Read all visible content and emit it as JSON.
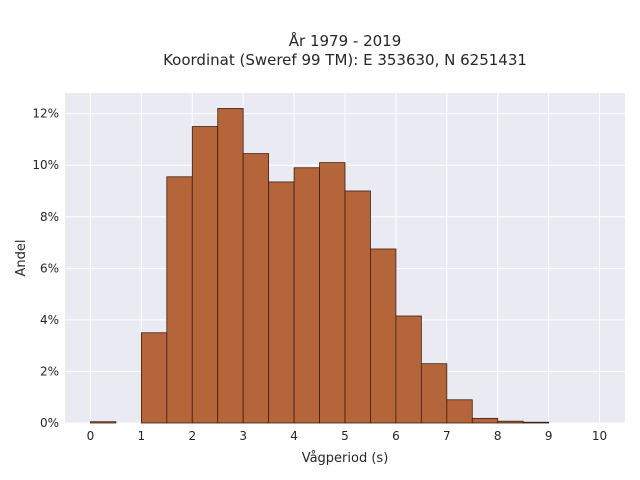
{
  "chart_data": {
    "type": "bar",
    "title_line1": "År 1979 - 2019",
    "title_line2": "Koordinat (Sweref 99 TM): E 353630, N 6251431",
    "xlabel": "Vågperiod (s)",
    "ylabel": "Andel",
    "xlim": [
      -0.5,
      10.5
    ],
    "ylim": [
      0,
      12.8
    ],
    "xticks": [
      0,
      1,
      2,
      3,
      4,
      5,
      6,
      7,
      8,
      9,
      10
    ],
    "yticks": [
      0,
      2,
      4,
      6,
      8,
      10,
      12
    ],
    "ytick_labels": [
      "0%",
      "2%",
      "4%",
      "6%",
      "8%",
      "10%",
      "12%"
    ],
    "bin_width": 0.5,
    "bins_start": [
      0,
      0.5,
      1,
      1.5,
      2,
      2.5,
      3,
      3.5,
      4,
      4.5,
      5,
      5.5,
      6,
      6.5,
      7,
      7.5,
      8,
      8.5,
      9,
      9.5
    ],
    "values": [
      0.05,
      0,
      3.5,
      9.55,
      11.5,
      12.2,
      10.45,
      9.35,
      9.9,
      10.1,
      9.0,
      6.75,
      4.15,
      2.3,
      0.9,
      0.18,
      0.07,
      0.03,
      0,
      0
    ],
    "bar_color": "#b5653a",
    "bar_edge_color": "#3d1f10",
    "plot_background": "#eaeaf2",
    "grid": true,
    "grid_color": "#ffffff"
  }
}
